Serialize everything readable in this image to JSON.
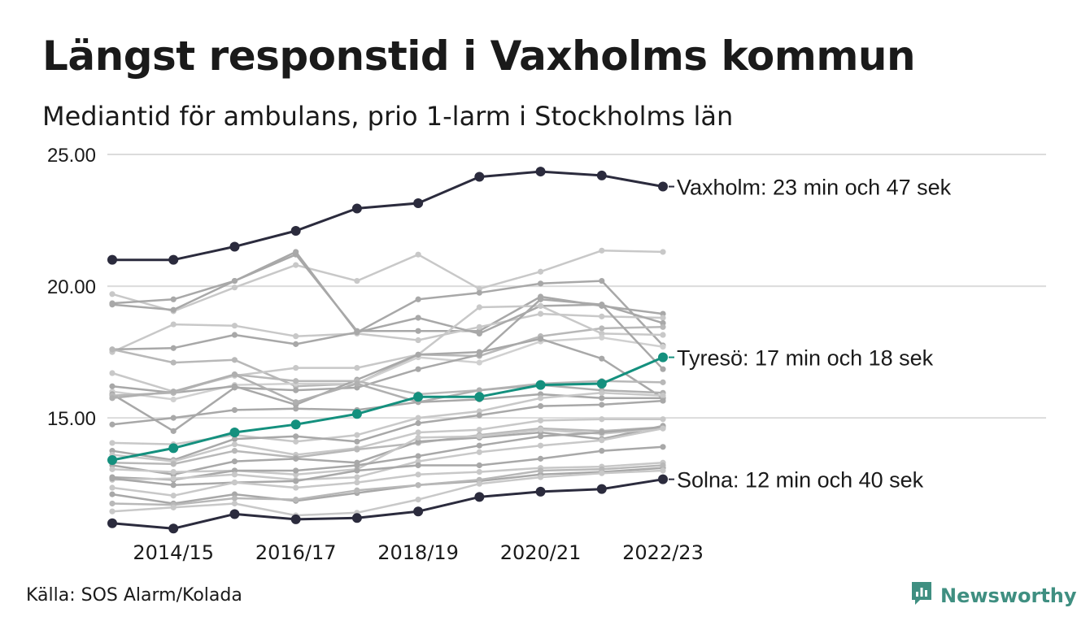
{
  "title": "Längst responstid i Vaxholms kommun",
  "subtitle": "Mediantid för ambulans, prio 1-larm i Stockholms län",
  "source": "Källa: SOS Alarm/Kolada",
  "brand": {
    "name": "Newsworthy",
    "icon": "newsworthy-logo-icon",
    "color": "#3f8f81"
  },
  "chart_data": {
    "type": "line",
    "x": [
      "2013/14",
      "2014/15",
      "2015/16",
      "2016/17",
      "2017/18",
      "2018/19",
      "2019/20",
      "2020/21",
      "2021/22",
      "2022/23"
    ],
    "x_tick_labels": [
      "2014/15",
      "2016/17",
      "2018/19",
      "2020/21",
      "2022/23"
    ],
    "y_ticks": [
      "25.00",
      "20.00",
      "15.00"
    ],
    "ylim": [
      10.5,
      25.0
    ],
    "grid": true,
    "highlight_series": [
      {
        "label": "Vaxholm: 23 min och 47 sek",
        "color": "#2b2b3d",
        "values": [
          21.0,
          21.0,
          21.5,
          22.1,
          22.95,
          23.15,
          24.15,
          24.35,
          24.2,
          23.78
        ]
      },
      {
        "label": "Tyresö: 17 min och 18 sek",
        "color": "#14907e",
        "values": [
          13.4,
          13.85,
          14.45,
          14.75,
          15.15,
          15.8,
          15.8,
          16.25,
          16.3,
          17.3
        ]
      },
      {
        "label": "Solna: 12 min och 40 sek",
        "color": "#2b2b3d",
        "values": [
          11.0,
          10.8,
          11.35,
          11.15,
          11.2,
          11.45,
          12.0,
          12.2,
          12.3,
          12.67
        ]
      }
    ],
    "background_series": [
      {
        "color": "#c8c8c8",
        "values": [
          19.7,
          19.05,
          19.95,
          20.8,
          20.2,
          21.2,
          19.9,
          20.55,
          21.35,
          21.3
        ]
      },
      {
        "color": "#a8a8a8",
        "values": [
          19.35,
          19.5,
          20.2,
          21.3,
          18.25,
          19.5,
          19.75,
          20.1,
          20.2,
          17.75
        ]
      },
      {
        "color": "#a8a8a8",
        "values": [
          19.3,
          19.1,
          20.2,
          21.2,
          18.3,
          18.3,
          18.3,
          19.6,
          19.25,
          18.95
        ]
      },
      {
        "color": "#c8c8c8",
        "values": [
          17.5,
          18.55,
          18.5,
          18.1,
          18.2,
          17.95,
          18.45,
          18.95,
          18.85,
          18.8
        ]
      },
      {
        "color": "#a8a8a8",
        "values": [
          17.6,
          17.65,
          18.15,
          17.8,
          18.25,
          18.8,
          18.2,
          19.25,
          19.3,
          18.6
        ]
      },
      {
        "color": "#b8b8b8",
        "values": [
          17.6,
          17.1,
          17.2,
          16.2,
          16.3,
          17.4,
          17.35,
          18.1,
          18.4,
          18.45
        ]
      },
      {
        "color": "#c8c8c8",
        "values": [
          16.7,
          16.0,
          16.6,
          16.9,
          16.9,
          17.4,
          19.2,
          19.25,
          18.2,
          18.15
        ]
      },
      {
        "color": "#d0d0d0",
        "values": [
          16.0,
          15.7,
          16.25,
          16.3,
          16.3,
          17.3,
          17.1,
          17.9,
          18.05,
          17.7
        ]
      },
      {
        "color": "#a8a8a8",
        "values": [
          16.2,
          15.95,
          16.2,
          15.5,
          16.45,
          17.4,
          17.5,
          18.0,
          17.25,
          15.75
        ]
      },
      {
        "color": "#a8a8a8",
        "values": [
          15.9,
          14.5,
          16.15,
          16.05,
          16.15,
          16.85,
          17.4,
          19.5,
          19.3,
          16.85
        ]
      },
      {
        "color": "#b8b8b8",
        "values": [
          15.85,
          15.95,
          16.65,
          16.4,
          16.4,
          15.9,
          16.05,
          16.3,
          16.4,
          16.35
        ]
      },
      {
        "color": "#b0b0b0",
        "values": [
          15.75,
          16.0,
          16.65,
          15.6,
          16.3,
          15.6,
          16.05,
          16.25,
          16.05,
          15.95
        ]
      },
      {
        "color": "#a8a8a8",
        "values": [
          14.75,
          15.0,
          15.3,
          15.35,
          15.3,
          15.6,
          15.7,
          15.9,
          15.75,
          15.75
        ]
      },
      {
        "color": "#c8c8c8",
        "values": [
          14.05,
          14.0,
          14.35,
          14.1,
          14.35,
          15.0,
          15.25,
          15.75,
          15.95,
          15.85
        ]
      },
      {
        "color": "#a8a8a8",
        "values": [
          13.75,
          13.4,
          14.2,
          14.3,
          14.1,
          14.8,
          15.1,
          15.45,
          15.5,
          15.65
        ]
      },
      {
        "color": "#c8c8c8",
        "values": [
          13.6,
          13.35,
          14.0,
          13.6,
          13.85,
          14.45,
          14.55,
          14.9,
          14.95,
          14.95
        ]
      },
      {
        "color": "#b8b8b8",
        "values": [
          13.3,
          13.25,
          13.75,
          13.5,
          13.8,
          14.05,
          14.35,
          14.6,
          14.5,
          14.65
        ]
      },
      {
        "color": "#a8a8a8",
        "values": [
          13.2,
          12.85,
          13.35,
          13.45,
          13.3,
          14.1,
          14.25,
          14.45,
          14.2,
          14.7
        ]
      },
      {
        "color": "#c8c8c8",
        "values": [
          13.05,
          12.95,
          13.0,
          12.85,
          13.05,
          14.25,
          14.3,
          14.55,
          14.4,
          14.6
        ]
      },
      {
        "color": "#a8a8a8",
        "values": [
          12.75,
          12.65,
          13.0,
          13.0,
          13.2,
          13.55,
          13.95,
          14.3,
          14.45,
          14.65
        ]
      },
      {
        "color": "#c8c8c8",
        "values": [
          12.65,
          12.7,
          12.85,
          12.65,
          12.75,
          13.35,
          13.7,
          13.95,
          14.15,
          14.6
        ]
      },
      {
        "color": "#a8a8a8",
        "values": [
          12.7,
          12.45,
          12.55,
          12.6,
          13.0,
          13.2,
          13.2,
          13.45,
          13.75,
          13.9
        ]
      },
      {
        "color": "#c8c8c8",
        "values": [
          12.35,
          12.05,
          12.55,
          12.35,
          12.55,
          12.85,
          12.95,
          13.1,
          13.15,
          13.3
        ]
      },
      {
        "color": "#a8a8a8",
        "values": [
          12.1,
          11.75,
          12.1,
          11.85,
          12.15,
          12.45,
          12.6,
          12.85,
          12.95,
          13.1
        ]
      },
      {
        "color": "#b8b8b8",
        "values": [
          11.75,
          11.7,
          11.95,
          11.9,
          12.25,
          12.45,
          12.65,
          13.0,
          13.05,
          13.2
        ]
      },
      {
        "color": "#c8c8c8",
        "values": [
          11.45,
          11.6,
          11.75,
          11.3,
          11.4,
          11.9,
          12.5,
          12.75,
          12.9,
          13.0
        ]
      }
    ]
  }
}
